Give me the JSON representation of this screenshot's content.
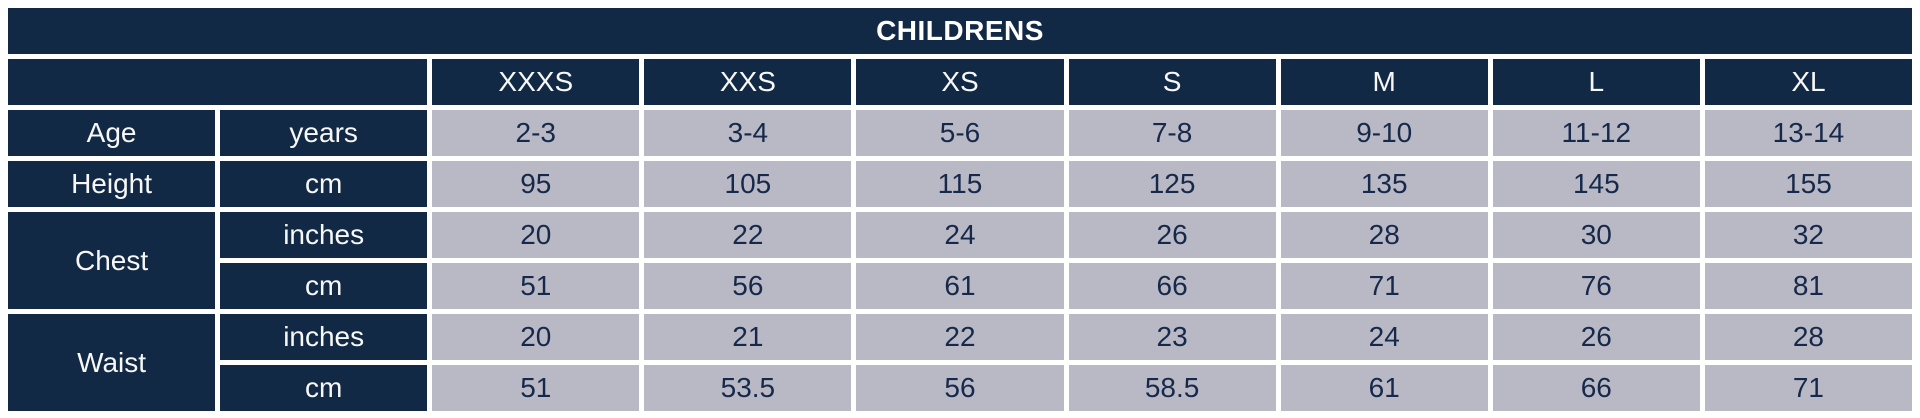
{
  "title": "CHILDRENS",
  "colors": {
    "header_bg": "#122945",
    "header_text": "#ffffff",
    "cell_bg": "#b9b9c6",
    "cell_text": "#16294a",
    "gridline": "#ffffff"
  },
  "chart_data": {
    "type": "table",
    "title": "CHILDRENS",
    "size_columns": [
      "XXXS",
      "XXS",
      "XS",
      "S",
      "M",
      "L",
      "XL"
    ],
    "measurements": [
      {
        "label": "Age",
        "units": [
          {
            "unit": "years",
            "values": [
              "2-3",
              "3-4",
              "5-6",
              "7-8",
              "9-10",
              "11-12",
              "13-14"
            ]
          }
        ]
      },
      {
        "label": "Height",
        "units": [
          {
            "unit": "cm",
            "values": [
              "95",
              "105",
              "115",
              "125",
              "135",
              "145",
              "155"
            ]
          }
        ]
      },
      {
        "label": "Chest",
        "units": [
          {
            "unit": "inches",
            "values": [
              "20",
              "22",
              "24",
              "26",
              "28",
              "30",
              "32"
            ]
          },
          {
            "unit": "cm",
            "values": [
              "51",
              "56",
              "61",
              "66",
              "71",
              "76",
              "81"
            ]
          }
        ]
      },
      {
        "label": "Waist",
        "units": [
          {
            "unit": "inches",
            "values": [
              "20",
              "21",
              "22",
              "23",
              "24",
              "26",
              "28"
            ]
          },
          {
            "unit": "cm",
            "values": [
              "51",
              "53.5",
              "56",
              "58.5",
              "61",
              "66",
              "71"
            ]
          }
        ]
      }
    ]
  }
}
